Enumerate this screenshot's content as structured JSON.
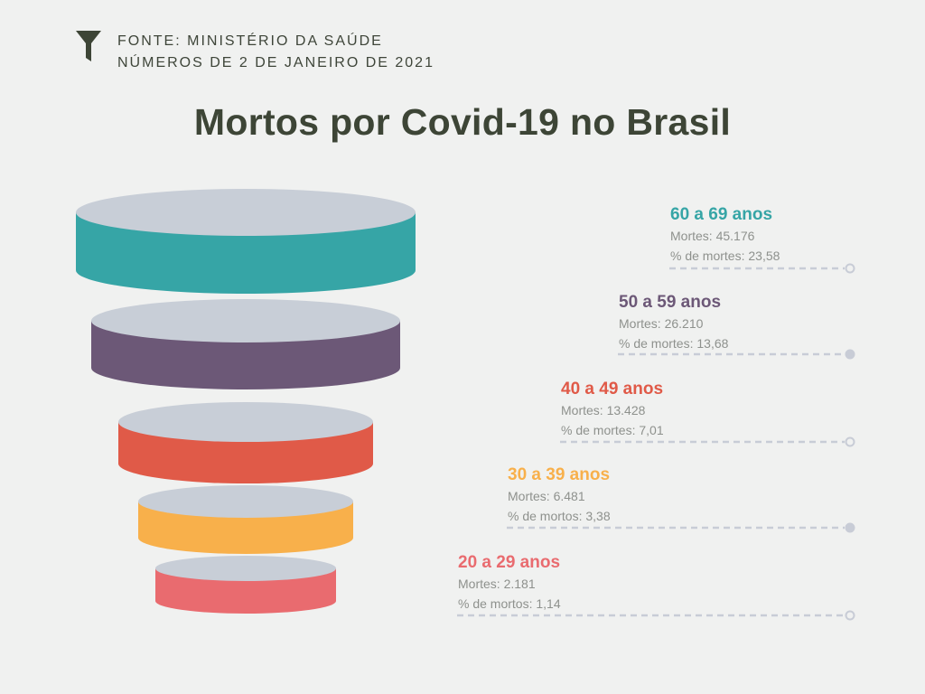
{
  "source": {
    "icon": "funnel-icon",
    "line1": "FONTE: MINISTÉRIO DA SAÚDE",
    "line2": "NÚMEROS DE 2 DE JANEIRO DE 2021"
  },
  "title": "Mortos por Covid-19 no Brasil",
  "colors": {
    "top_face": "#c8ced7",
    "text_dark": "#3d4536",
    "muted": "#8e918d",
    "leader": "#c8ccd6"
  },
  "chart_data": {
    "type": "funnel",
    "title": "Mortos por Covid-19 no Brasil",
    "series": [
      {
        "range": "60 a 69 anos",
        "deaths_label": "Mortes: 45.176",
        "pct_label": "% de mortes: 23,58",
        "deaths": 45176,
        "pct": 23.58,
        "color": "#36a5a6"
      },
      {
        "range": "50 a 59 anos",
        "deaths_label": "Mortes: 26.210",
        "pct_label": "% de mortes: 13,68",
        "deaths": 26210,
        "pct": 13.68,
        "color": "#6c5877"
      },
      {
        "range": "40 a 49 anos",
        "deaths_label": "Mortes: 13.428",
        "pct_label": "% de mortes: 7,01",
        "deaths": 13428,
        "pct": 7.01,
        "color": "#e05a48"
      },
      {
        "range": "30 a 39 anos",
        "deaths_label": "Mortes: 6.481",
        "pct_label": "% de mortos: 3,38",
        "deaths": 6481,
        "pct": 3.38,
        "color": "#f8b04b"
      },
      {
        "range": "20 a 29 anos",
        "deaths_label": "Mortes: 2.181",
        "pct_label": "% de mortos: 1,14",
        "deaths": 2181,
        "pct": 1.14,
        "color": "#e96b6f"
      }
    ]
  }
}
